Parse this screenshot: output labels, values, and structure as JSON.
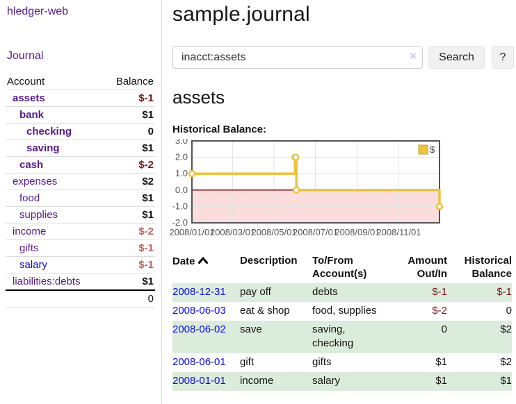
{
  "app": {
    "brand": "hledger-web"
  },
  "colors": {
    "link_visited_purple": "#551a8b",
    "link_blue": "#0c0cdd",
    "negative_strong": "#7b1313",
    "negative_soft": "#c06060",
    "row_green": "#dcecdc",
    "chart_gold": "#edc240",
    "negative_region_pink": "#fbdddd",
    "zero_line_red": "#8b0000"
  },
  "sidebar": {
    "journal_link": "Journal",
    "account_header": "Account",
    "balance_header": "Balance",
    "accounts": [
      {
        "name": "assets",
        "depth": 1,
        "bold": true,
        "balance": "$-1",
        "balance_class": "neg-strong"
      },
      {
        "name": "bank",
        "depth": 2,
        "bold": true,
        "balance": "$1",
        "balance_class": ""
      },
      {
        "name": "checking",
        "depth": 3,
        "bold": true,
        "balance": "0",
        "balance_class": ""
      },
      {
        "name": "saving",
        "depth": 3,
        "bold": true,
        "balance": "$1",
        "balance_class": ""
      },
      {
        "name": "cash",
        "depth": 2,
        "bold": true,
        "balance": "$-2",
        "balance_class": "neg-strong"
      },
      {
        "name": "expenses",
        "depth": 1,
        "bold": false,
        "balance": "$2",
        "balance_class": ""
      },
      {
        "name": "food",
        "depth": 2,
        "bold": false,
        "balance": "$1",
        "balance_class": ""
      },
      {
        "name": "supplies",
        "depth": 2,
        "bold": false,
        "balance": "$1",
        "balance_class": ""
      },
      {
        "name": "income",
        "depth": 1,
        "bold": false,
        "balance": "$-2",
        "balance_class": "neg-soft"
      },
      {
        "name": "gifts",
        "depth": 2,
        "bold": false,
        "balance": "$-1",
        "balance_class": "neg-soft"
      },
      {
        "name": "salary",
        "depth": 2,
        "bold": false,
        "balance": "$-1",
        "balance_class": "neg-soft",
        "link_color": "blue"
      },
      {
        "name": "liabilities:debts",
        "depth": 1,
        "bold": false,
        "balance": "$1",
        "balance_class": ""
      }
    ],
    "total": "0"
  },
  "main": {
    "title": "sample.journal",
    "search": {
      "value": "inacct:assets",
      "clear_icon": "×",
      "button": "Search",
      "help_button": "?"
    },
    "account_heading": "assets",
    "chart_label": "Historical Balance:"
  },
  "chart_data": {
    "type": "line",
    "title": "Historical Balance:",
    "step": true,
    "x_range": [
      "2008-01-01",
      "2008-12-31"
    ],
    "ylim": [
      -2,
      3
    ],
    "y_ticks": [
      "3.0",
      "2.0",
      "1.0",
      "0.0",
      "-1.0",
      "-2.0"
    ],
    "x_ticks": [
      {
        "label": "2008/01/01",
        "date": "2008-01-01"
      },
      {
        "label": "2008/03/01",
        "date": "2008-03-01"
      },
      {
        "label": "2008/05/01",
        "date": "2008-05-01"
      },
      {
        "label": "2008/07/01",
        "date": "2008-07-01"
      },
      {
        "label": "2008/09/01",
        "date": "2008-09-01"
      },
      {
        "label": "2008/11/01",
        "date": "2008-11-01"
      }
    ],
    "grid": true,
    "legend_position": "top-right",
    "negative_region_color": "#fbdddd",
    "zero_line_color": "#8b0000",
    "series": [
      {
        "name": "$",
        "color": "#edc240",
        "x": [
          "2008-01-01",
          "2008-06-01",
          "2008-06-02",
          "2008-06-03",
          "2008-12-31"
        ],
        "y": [
          1,
          2,
          2,
          0,
          -1
        ]
      }
    ]
  },
  "register": {
    "headers": {
      "date": "Date",
      "description": "Description",
      "tofrom": "To/From Account(s)",
      "amount": "Amount Out/In",
      "balance": "Historical Balance"
    },
    "rows": [
      {
        "date": "2008-12-31",
        "description": "pay off",
        "accounts": "debts",
        "amount": "$-1",
        "amount_negative": true,
        "balance": "$-1",
        "balance_negative": true
      },
      {
        "date": "2008-06-03",
        "description": "eat & shop",
        "accounts": "food, supplies",
        "amount": "$-2",
        "amount_negative": true,
        "balance": "0",
        "balance_negative": false
      },
      {
        "date": "2008-06-02",
        "description": "save",
        "accounts": "saving, checking",
        "amount": "0",
        "amount_negative": false,
        "balance": "$2",
        "balance_negative": false
      },
      {
        "date": "2008-06-01",
        "description": "gift",
        "accounts": "gifts",
        "amount": "$1",
        "amount_negative": false,
        "balance": "$2",
        "balance_negative": false
      },
      {
        "date": "2008-01-01",
        "description": "income",
        "accounts": "salary",
        "amount": "$1",
        "amount_negative": false,
        "balance": "$1",
        "balance_negative": false
      }
    ]
  }
}
